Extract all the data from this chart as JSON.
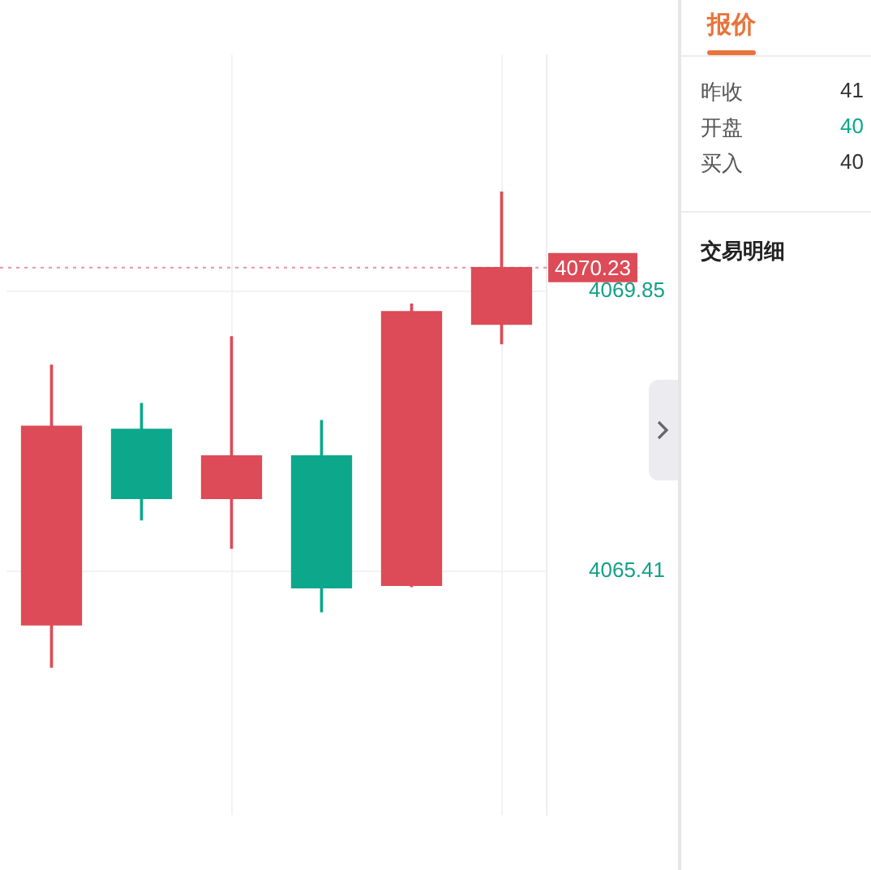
{
  "chart_data": {
    "type": "candlestick",
    "categories": [
      null,
      null,
      null,
      null,
      null,
      null
    ],
    "ohlc": [
      [
        4064.55,
        4068.68,
        4063.88,
        4067.71
      ],
      [
        4067.66,
        4068.07,
        4066.22,
        4066.56
      ],
      [
        4066.56,
        4069.13,
        4065.77,
        4067.24
      ],
      [
        4067.24,
        4067.8,
        4064.76,
        4065.14
      ],
      [
        4065.18,
        4069.65,
        4065.16,
        4069.53
      ],
      [
        4069.33,
        4071.43,
        4069.02,
        4070.23
      ]
    ],
    "colors": [
      "#dc4b57",
      "#0da88c",
      "#dc4b57",
      "#0da88c",
      "#dc4b57",
      "#dc4b57"
    ],
    "ylim": [
      4061.53,
      4073.61
    ],
    "yticks": [
      4069.85,
      4065.41
    ],
    "tick_labels": "y",
    "grid": true,
    "ref_lines": [
      {
        "axis": "y",
        "value": 4070.23,
        "label": "4070.23",
        "color": "#dc4b57",
        "line_style": "dotted"
      }
    ],
    "annotations": [
      "报价",
      "昨收",
      "41",
      "开盘",
      "40",
      "买入",
      "40",
      "交易明细"
    ]
  }
}
